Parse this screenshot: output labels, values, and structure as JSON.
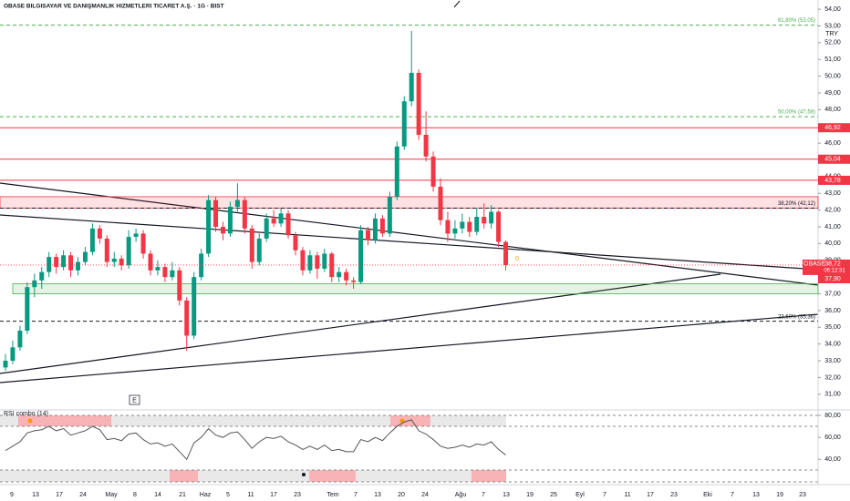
{
  "chart_data": {
    "type": "candlestick",
    "title": "OBASE BILGISAYAR VE DANIŞMANLIK HIZMETLERI TICARET A.Ş. · 1G · BIST",
    "currency": "TRY",
    "up_color": "#089981",
    "down_color": "#f23645",
    "ohlc": [
      [
        32.6,
        33.4,
        32.4,
        33.0
      ],
      [
        33.0,
        34.2,
        32.8,
        33.8
      ],
      [
        33.8,
        35.1,
        33.6,
        34.8
      ],
      [
        34.8,
        37.7,
        34.6,
        37.4
      ],
      [
        37.4,
        38.2,
        36.8,
        37.8
      ],
      [
        37.8,
        38.6,
        37.3,
        38.3
      ],
      [
        38.3,
        39.5,
        38.0,
        39.2
      ],
      [
        39.2,
        39.4,
        38.2,
        38.6
      ],
      [
        38.6,
        39.6,
        38.4,
        39.3
      ],
      [
        39.3,
        39.5,
        38.0,
        38.4
      ],
      [
        38.4,
        39.2,
        38.1,
        38.9
      ],
      [
        38.9,
        39.8,
        38.7,
        39.5
      ],
      [
        39.5,
        41.2,
        39.3,
        40.9
      ],
      [
        40.9,
        41.1,
        40.0,
        40.3
      ],
      [
        40.3,
        40.5,
        38.6,
        38.9
      ],
      [
        38.9,
        39.5,
        38.6,
        39.1
      ],
      [
        39.1,
        39.3,
        38.4,
        38.7
      ],
      [
        38.7,
        40.8,
        38.5,
        40.4
      ],
      [
        40.4,
        40.9,
        40.1,
        40.6
      ],
      [
        40.6,
        40.8,
        39.1,
        39.4
      ],
      [
        39.4,
        39.6,
        38.1,
        38.4
      ],
      [
        38.4,
        39.0,
        38.1,
        38.6
      ],
      [
        38.6,
        38.8,
        37.7,
        38.0
      ],
      [
        38.0,
        38.9,
        37.8,
        38.4
      ],
      [
        38.4,
        38.6,
        36.3,
        36.6
      ],
      [
        36.6,
        36.8,
        33.6,
        34.5
      ],
      [
        34.5,
        38.3,
        34.3,
        38.0
      ],
      [
        38.0,
        39.7,
        37.8,
        39.4
      ],
      [
        39.4,
        42.9,
        39.2,
        42.6
      ],
      [
        42.6,
        42.8,
        40.7,
        41.0
      ],
      [
        41.0,
        41.3,
        40.2,
        40.6
      ],
      [
        40.6,
        42.5,
        40.4,
        42.2
      ],
      [
        42.2,
        43.6,
        41.9,
        42.6
      ],
      [
        42.6,
        42.8,
        40.6,
        40.9
      ],
      [
        40.9,
        41.1,
        38.5,
        38.9
      ],
      [
        38.9,
        40.6,
        38.7,
        40.3
      ],
      [
        40.3,
        41.8,
        40.1,
        41.5
      ],
      [
        41.5,
        42.0,
        41.0,
        41.2
      ],
      [
        41.2,
        42.1,
        41.0,
        41.8
      ],
      [
        41.8,
        42.0,
        40.3,
        40.5
      ],
      [
        40.5,
        40.7,
        39.3,
        39.6
      ],
      [
        39.6,
        39.8,
        38.1,
        38.4
      ],
      [
        38.4,
        39.6,
        38.2,
        39.3
      ],
      [
        39.3,
        39.5,
        37.9,
        38.5
      ],
      [
        38.5,
        39.7,
        38.3,
        39.4
      ],
      [
        39.4,
        39.5,
        37.7,
        38.0
      ],
      [
        38.0,
        38.6,
        37.7,
        38.3
      ],
      [
        38.3,
        38.5,
        37.5,
        37.8
      ],
      [
        37.8,
        38.0,
        37.3,
        37.7
      ],
      [
        37.7,
        41.1,
        37.6,
        40.8
      ],
      [
        40.8,
        41.0,
        39.9,
        40.2
      ],
      [
        40.2,
        41.8,
        40.0,
        41.5
      ],
      [
        41.5,
        41.7,
        40.4,
        40.6
      ],
      [
        40.6,
        43.1,
        40.4,
        42.8
      ],
      [
        42.8,
        46.1,
        42.6,
        45.8
      ],
      [
        45.8,
        48.8,
        45.6,
        48.5
      ],
      [
        48.5,
        52.7,
        48.2,
        50.2
      ],
      [
        50.2,
        50.4,
        46.2,
        46.5
      ],
      [
        46.5,
        47.9,
        44.9,
        45.2
      ],
      [
        45.2,
        45.5,
        43.1,
        43.4
      ],
      [
        43.4,
        43.9,
        41.1,
        41.4
      ],
      [
        41.4,
        41.9,
        40.1,
        40.6
      ],
      [
        40.6,
        41.4,
        40.3,
        40.9
      ],
      [
        40.9,
        41.8,
        40.6,
        41.3
      ],
      [
        41.3,
        41.6,
        40.4,
        40.7
      ],
      [
        40.7,
        42.1,
        40.5,
        41.6
      ],
      [
        41.6,
        42.4,
        40.9,
        41.2
      ],
      [
        41.2,
        42.3,
        40.9,
        41.9
      ],
      [
        41.9,
        42.0,
        39.8,
        40.1
      ],
      [
        40.1,
        40.2,
        38.4,
        38.72
      ]
    ],
    "ylim": [
      30.5,
      54.55
    ],
    "yticks": [
      {
        "value": 31,
        "label": "31,00"
      },
      {
        "value": 32,
        "label": "32,00"
      },
      {
        "value": 33,
        "label": "33,00"
      },
      {
        "value": 34,
        "label": "34,00"
      },
      {
        "value": 35,
        "label": "35,00"
      },
      {
        "value": 36,
        "label": "36,00"
      },
      {
        "value": 37,
        "label": "37,00"
      },
      {
        "value": 38,
        "label": "38,00"
      },
      {
        "value": 39,
        "label": "39,00"
      },
      {
        "value": 40,
        "label": "40,00"
      },
      {
        "value": 41,
        "label": "41,00"
      },
      {
        "value": 42,
        "label": "42,00"
      },
      {
        "value": 43,
        "label": "43,00"
      },
      {
        "value": 44,
        "label": "44,00"
      },
      {
        "value": 45,
        "label": "45,00"
      },
      {
        "value": 46,
        "label": "46,00"
      },
      {
        "value": 47,
        "label": "47,00"
      },
      {
        "value": 48,
        "label": "48,00"
      },
      {
        "value": 49,
        "label": "49,00"
      },
      {
        "value": 50,
        "label": "50,00"
      },
      {
        "value": 51,
        "label": "51,00"
      },
      {
        "value": 52,
        "label": "52,00"
      },
      {
        "value": 53,
        "label": "53,00"
      },
      {
        "value": 54,
        "label": "54,00"
      }
    ],
    "x_labels": [
      "9",
      "13",
      "17",
      "24",
      "May",
      "8",
      "14",
      "21",
      "Haz",
      "5",
      "11",
      "17",
      "23",
      "Tem",
      "7",
      "13",
      "20",
      "24",
      "Ağu",
      "7",
      "13",
      "19",
      "25",
      "Eyl",
      "7",
      "11",
      "17",
      "23",
      "Eki",
      "7",
      "13",
      "19",
      "23"
    ],
    "fib_levels": [
      {
        "value": 53.05,
        "label": "61,80% (53,05)",
        "color": "#4caf50"
      },
      {
        "value": 47.58,
        "label": "50,00% (47,58)",
        "color": "#4caf50"
      },
      {
        "value": 42.12,
        "label": "38,20% (42,12)",
        "color": "#131722"
      },
      {
        "value": 35.36,
        "label": "23,60% (35,36)",
        "color": "#131722"
      }
    ],
    "lines": [
      {
        "value": 46.92,
        "label": "46,92"
      },
      {
        "value": 45.04,
        "label": "45,04"
      },
      {
        "value": 43.78,
        "label": "43,78"
      }
    ],
    "zones": [
      {
        "from": 42.12,
        "to": 42.8,
        "color": "#f23645"
      },
      {
        "from": 37.0,
        "to": 37.6,
        "color": "#4caf50"
      }
    ],
    "tags": [
      {
        "value": 37.9,
        "label": "37,90"
      }
    ],
    "last": {
      "name": "OBASE",
      "value": 38.72,
      "label": "38,72",
      "countdown": "06:12:31"
    },
    "marker": "E",
    "bar_label": "0",
    "rsi": {
      "title": "RSI combo (14)",
      "color": "#555555",
      "values": [
        48,
        52,
        56,
        64,
        66,
        67,
        70,
        66,
        68,
        62,
        64,
        66,
        70,
        67,
        58,
        59,
        57,
        63,
        64,
        58,
        54,
        55,
        52,
        54,
        47,
        40,
        55,
        60,
        68,
        62,
        60,
        64,
        65,
        58,
        50,
        56,
        60,
        59,
        61,
        56,
        53,
        49,
        52,
        49,
        53,
        48,
        49,
        47,
        47,
        58,
        56,
        60,
        57,
        64,
        70,
        74,
        76,
        66,
        63,
        58,
        52,
        50,
        51,
        53,
        51,
        54,
        53,
        56,
        49,
        44
      ],
      "ylim": [
        17,
        85
      ],
      "yticks": [
        {
          "value": 80,
          "label": "80,00"
        },
        {
          "value": 60,
          "label": "60,00"
        },
        {
          "value": 40,
          "label": "40,00"
        }
      ]
    }
  }
}
